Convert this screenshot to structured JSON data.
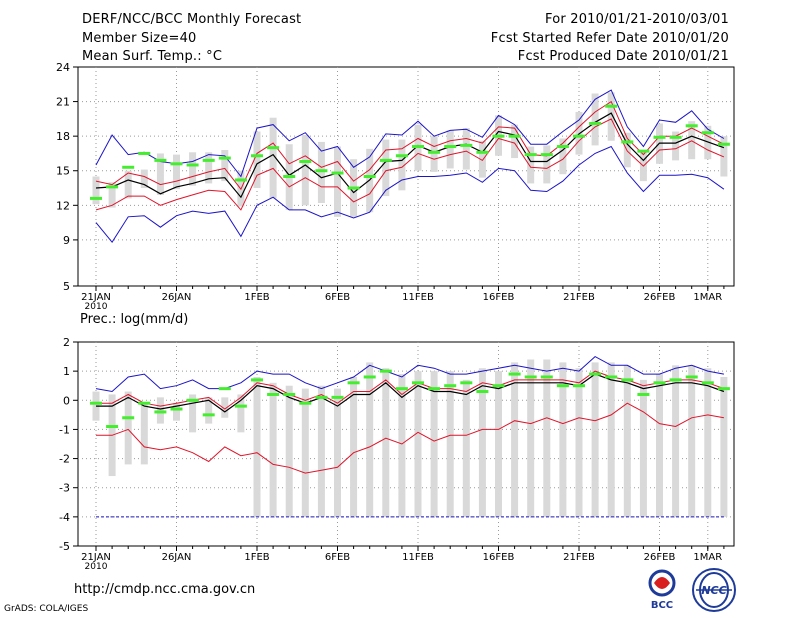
{
  "header": {
    "title": "DERF/NCC/BCC Monthly Forecast",
    "member_size": "Member Size=40",
    "variable": "Mean Surf. Temp.: °C",
    "period": "For 2010/01/21-2010/03/01",
    "started": "Fcst Started Refer Date 2010/01/20",
    "produced": "Fcst Produced Date 2010/01/21"
  },
  "footer": {
    "url": "http://cmdp.ncc.cma.gov.cn",
    "grads": "GrADS: COLA/IGES",
    "logo_bcc": "BCC",
    "logo_ncc": "NCC"
  },
  "colors": {
    "mean": "#000000",
    "spread": "#e0142a",
    "extreme": "#1c14c8",
    "climatology": "#44ee2e",
    "box": "#d9d9d9",
    "grid": "#9a9a9a"
  },
  "chart_data": [
    {
      "type": "box",
      "title": "Mean Surf. Temp.: °C",
      "x": [
        1,
        2,
        3,
        4,
        5,
        6,
        7,
        8,
        9,
        10,
        11,
        12,
        13,
        14,
        15,
        16,
        17,
        18,
        19,
        20,
        21,
        22,
        23,
        24,
        25,
        26,
        27,
        28,
        29,
        30,
        31,
        32,
        33,
        34,
        35,
        36,
        37,
        38,
        39,
        40
      ],
      "xticks": [
        "21JAN\n2010",
        "26JAN",
        "1FEB",
        "6FEB",
        "11FEB",
        "16FEB",
        "21FEB",
        "26FEB",
        "1MAR"
      ],
      "xtick_positions": [
        1,
        6,
        11,
        16,
        21,
        26,
        31,
        36,
        39
      ],
      "ylim": [
        5,
        24
      ],
      "yticks": [
        5,
        9,
        12,
        15,
        18,
        21,
        24
      ],
      "series": [
        {
          "name": "ensemble mean",
          "values": [
            13.5,
            13.6,
            14.2,
            13.8,
            13.0,
            13.6,
            13.9,
            14.3,
            14.4,
            12.7,
            15.6,
            16.4,
            14.6,
            15.5,
            14.4,
            14.8,
            13.1,
            14.2,
            15.8,
            15.9,
            17.2,
            16.6,
            17.1,
            17.3,
            16.6,
            18.4,
            18.1,
            15.8,
            15.8,
            16.8,
            18.2,
            19.2,
            20.0,
            17.3,
            15.9,
            17.4,
            17.4,
            18.0,
            17.5,
            17.0
          ]
        },
        {
          "name": "upper spread",
          "values": [
            14.1,
            13.8,
            14.8,
            14.5,
            13.8,
            14.1,
            14.5,
            14.9,
            15.2,
            13.4,
            16.5,
            17.4,
            15.6,
            16.3,
            15.3,
            15.8,
            14.1,
            15.1,
            16.8,
            16.9,
            17.8,
            17.1,
            17.6,
            17.8,
            17.4,
            18.8,
            18.7,
            16.4,
            16.3,
            17.4,
            18.8,
            20.1,
            21.0,
            17.8,
            16.4,
            18.0,
            18.0,
            18.7,
            18.0,
            17.3
          ]
        },
        {
          "name": "lower spread",
          "values": [
            11.6,
            12.0,
            12.8,
            12.8,
            12.0,
            12.5,
            12.9,
            13.3,
            13.2,
            11.6,
            14.6,
            15.2,
            13.6,
            14.4,
            13.6,
            13.6,
            12.3,
            13.0,
            15.0,
            15.3,
            16.5,
            16.0,
            16.4,
            16.7,
            15.9,
            17.8,
            17.4,
            15.3,
            15.2,
            16.0,
            17.6,
            18.8,
            19.5,
            16.7,
            15.4,
            16.8,
            16.9,
            17.6,
            16.8,
            16.2
          ]
        },
        {
          "name": "maximum",
          "values": [
            15.5,
            18.1,
            16.4,
            16.6,
            15.8,
            15.6,
            15.8,
            16.4,
            16.3,
            14.5,
            18.7,
            19.0,
            17.6,
            18.3,
            16.7,
            17.1,
            15.3,
            16.2,
            18.2,
            18.1,
            19.3,
            18.0,
            18.5,
            18.6,
            17.9,
            19.8,
            19.0,
            17.3,
            17.3,
            18.4,
            19.4,
            21.2,
            22.0,
            18.8,
            17.1,
            19.4,
            19.2,
            20.2,
            18.6,
            17.8
          ]
        },
        {
          "name": "minimum",
          "values": [
            10.5,
            8.8,
            11.0,
            11.1,
            10.1,
            11.1,
            11.5,
            11.3,
            11.5,
            9.3,
            12.0,
            12.7,
            11.6,
            11.6,
            11.0,
            11.4,
            10.9,
            11.4,
            13.3,
            14.2,
            14.5,
            14.5,
            14.6,
            14.8,
            14.0,
            15.2,
            15.0,
            13.3,
            13.2,
            14.1,
            15.5,
            16.5,
            17.1,
            14.8,
            13.2,
            14.6,
            14.6,
            14.7,
            14.4,
            13.4
          ]
        },
        {
          "name": "climatology",
          "values": [
            12.6,
            13.6,
            15.3,
            16.5,
            15.9,
            15.6,
            15.5,
            15.9,
            16.1,
            14.2,
            16.3,
            17.0,
            14.5,
            15.8,
            15.0,
            14.8,
            13.5,
            14.5,
            15.9,
            16.3,
            17.1,
            16.6,
            17.1,
            17.2,
            16.6,
            18.0,
            18.0,
            16.4,
            16.4,
            17.1,
            18.0,
            19.1,
            20.6,
            17.5,
            16.7,
            17.9,
            17.9,
            18.9,
            18.3,
            17.3
          ]
        },
        {
          "name": "box top",
          "values": [
            14.5,
            14.0,
            15.0,
            15.1,
            16.5,
            16.4,
            16.6,
            16.6,
            16.8,
            15.0,
            18.4,
            19.6,
            17.3,
            18.1,
            17.5,
            17.1,
            16.0,
            16.9,
            17.7,
            17.7,
            19.0,
            18.0,
            18.5,
            18.7,
            17.6,
            19.8,
            19.0,
            17.1,
            17.2,
            17.8,
            20.1,
            21.7,
            21.8,
            18.3,
            16.8,
            19.1,
            18.4,
            19.3,
            18.9,
            18.0
          ]
        },
        {
          "name": "box bottom",
          "values": [
            12.1,
            11.8,
            12.6,
            13.5,
            12.9,
            13.4,
            13.7,
            13.9,
            14.1,
            11.9,
            13.5,
            12.6,
            11.6,
            12.0,
            12.2,
            11.0,
            11.0,
            11.4,
            12.8,
            13.3,
            15.0,
            14.9,
            15.2,
            15.1,
            14.4,
            16.3,
            16.1,
            13.9,
            13.9,
            14.7,
            16.4,
            17.2,
            17.6,
            15.3,
            14.1,
            15.6,
            15.9,
            16.0,
            16.0,
            14.5
          ]
        }
      ]
    },
    {
      "type": "box",
      "title": "Prec.: log(mm/d)",
      "x": [
        1,
        2,
        3,
        4,
        5,
        6,
        7,
        8,
        9,
        10,
        11,
        12,
        13,
        14,
        15,
        16,
        17,
        18,
        19,
        20,
        21,
        22,
        23,
        24,
        25,
        26,
        27,
        28,
        29,
        30,
        31,
        32,
        33,
        34,
        35,
        36,
        37,
        38,
        39,
        40
      ],
      "xticks": [
        "21JAN\n2010",
        "26JAN",
        "1FEB",
        "6FEB",
        "11FEB",
        "16FEB",
        "21FEB",
        "26FEB",
        "1MAR"
      ],
      "xtick_positions": [
        1,
        6,
        11,
        16,
        21,
        26,
        31,
        36,
        39
      ],
      "ylim": [
        -5,
        2
      ],
      "yticks": [
        -5,
        -4,
        -3,
        -2,
        -1,
        0,
        1,
        2
      ],
      "series": [
        {
          "name": "ensemble mean",
          "values": [
            -0.2,
            -0.2,
            0.1,
            -0.2,
            -0.3,
            -0.2,
            -0.1,
            0.0,
            -0.4,
            0.0,
            0.5,
            0.4,
            0.1,
            -0.1,
            0.1,
            -0.2,
            0.2,
            0.2,
            0.6,
            0.1,
            0.5,
            0.3,
            0.3,
            0.2,
            0.5,
            0.4,
            0.6,
            0.6,
            0.6,
            0.6,
            0.5,
            0.9,
            0.7,
            0.6,
            0.4,
            0.5,
            0.6,
            0.6,
            0.5,
            0.3
          ]
        },
        {
          "name": "upper spread",
          "values": [
            -0.1,
            -0.1,
            0.2,
            -0.1,
            -0.2,
            -0.1,
            0.0,
            0.1,
            -0.3,
            0.1,
            0.6,
            0.5,
            0.2,
            0.0,
            0.2,
            -0.1,
            0.3,
            0.3,
            0.7,
            0.2,
            0.6,
            0.4,
            0.4,
            0.3,
            0.6,
            0.5,
            0.7,
            0.7,
            0.7,
            0.7,
            0.6,
            1.0,
            0.8,
            0.7,
            0.5,
            0.6,
            0.7,
            0.7,
            0.6,
            0.4
          ]
        },
        {
          "name": "lower spread",
          "values": [
            -1.2,
            -1.2,
            -1.0,
            -1.6,
            -1.7,
            -1.6,
            -1.8,
            -2.1,
            -1.6,
            -1.9,
            -1.8,
            -2.2,
            -2.3,
            -2.5,
            -2.4,
            -2.3,
            -1.8,
            -1.6,
            -1.3,
            -1.5,
            -1.1,
            -1.4,
            -1.2,
            -1.2,
            -1.0,
            -1.0,
            -0.7,
            -0.8,
            -0.6,
            -0.8,
            -0.6,
            -0.7,
            -0.5,
            -0.1,
            -0.4,
            -0.8,
            -0.9,
            -0.6,
            -0.5,
            -0.6
          ]
        },
        {
          "name": "maximum",
          "values": [
            0.4,
            0.3,
            0.8,
            0.9,
            0.4,
            0.5,
            0.7,
            0.4,
            0.4,
            0.6,
            1.0,
            0.9,
            0.9,
            0.6,
            0.4,
            0.6,
            0.8,
            1.2,
            1.0,
            0.8,
            1.2,
            1.1,
            0.9,
            0.9,
            1.0,
            1.1,
            1.2,
            1.1,
            1.0,
            1.1,
            1.0,
            1.5,
            1.2,
            1.2,
            0.9,
            0.9,
            1.1,
            1.2,
            1.0,
            0.9
          ]
        },
        {
          "name": "minimum",
          "values": [
            -4.0,
            -4.0,
            -4.0,
            -4.0,
            -4.0,
            -4.0,
            -4.0,
            -4.0,
            -4.0,
            -4.0,
            -4.0,
            -4.0,
            -4.0,
            -4.0,
            -4.0,
            -4.0,
            -4.0,
            -4.0,
            -4.0,
            -4.0,
            -4.0,
            -4.0,
            -4.0,
            -4.0,
            -4.0,
            -4.0,
            -4.0,
            -4.0,
            -4.0,
            -4.0,
            -4.0,
            -4.0,
            -4.0,
            -4.0,
            -4.0,
            -4.0,
            -4.0,
            -4.0,
            -4.0,
            -4.0
          ]
        },
        {
          "name": "climatology",
          "values": [
            -0.1,
            -0.9,
            -0.6,
            -0.1,
            -0.4,
            -0.3,
            0.0,
            -0.5,
            0.4,
            -0.2,
            0.7,
            0.2,
            0.2,
            -0.1,
            0.1,
            0.1,
            0.6,
            0.8,
            1.0,
            0.4,
            0.6,
            0.4,
            0.5,
            0.6,
            0.3,
            0.5,
            0.9,
            0.8,
            0.8,
            0.5,
            0.5,
            0.9,
            0.8,
            0.7,
            0.2,
            0.6,
            0.7,
            0.8,
            0.6,
            0.4
          ]
        },
        {
          "name": "box top",
          "values": [
            0.3,
            0.2,
            0.3,
            -0.1,
            0.1,
            -0.1,
            0.2,
            0.1,
            0.1,
            0.2,
            0.8,
            0.6,
            0.5,
            0.4,
            0.5,
            0.4,
            0.8,
            1.3,
            1.1,
            0.9,
            1.0,
            1.0,
            1.0,
            0.7,
            1.1,
            1.0,
            1.3,
            1.4,
            1.4,
            1.3,
            1.1,
            1.3,
            1.3,
            1.2,
            0.7,
            0.9,
            1.2,
            1.2,
            1.1,
            0.8
          ]
        },
        {
          "name": "box bottom",
          "values": [
            -0.7,
            -2.6,
            -2.2,
            -2.2,
            -0.8,
            -0.7,
            -1.1,
            -0.8,
            -0.6,
            -1.1,
            -4.0,
            -4.0,
            -4.0,
            -4.0,
            -4.0,
            -4.0,
            -4.0,
            -4.0,
            -4.0,
            -4.0,
            -4.0,
            -4.0,
            -4.0,
            -4.0,
            -4.0,
            -4.0,
            -4.0,
            -4.0,
            -4.0,
            -4.0,
            -4.0,
            -4.0,
            -4.0,
            -4.0,
            -4.0,
            -4.0,
            -4.0,
            -4.0,
            -4.0,
            -4.0
          ]
        }
      ]
    }
  ]
}
